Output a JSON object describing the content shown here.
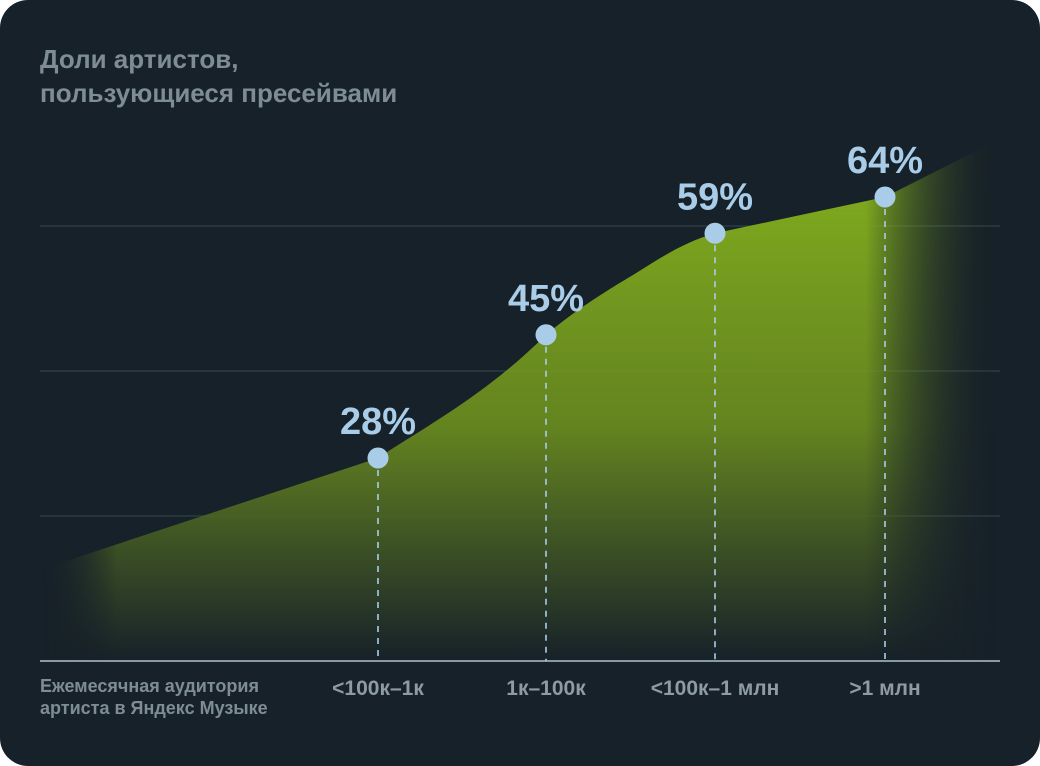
{
  "colors": {
    "background": "#172129",
    "area": "#86b21e",
    "marker": "#a9cde8",
    "gridline": "#2c3a42",
    "axis": "#8a9aa3"
  },
  "chart_data": {
    "type": "area",
    "title": "Доли артистов,\nпользующиеся пресейвами",
    "xlabel": "Ежемесячная аудитория\nартиста в Яндекс Музыке",
    "ylabel": "",
    "categories": [
      "<100к–1к",
      "1к–100к",
      "<100к–1 млн",
      ">1 млн"
    ],
    "values": [
      28,
      45,
      59,
      64
    ],
    "value_labels": [
      "28%",
      "45%",
      "59%",
      "64%"
    ],
    "ylim": [
      0,
      80
    ],
    "grid": true,
    "legend": "none"
  }
}
